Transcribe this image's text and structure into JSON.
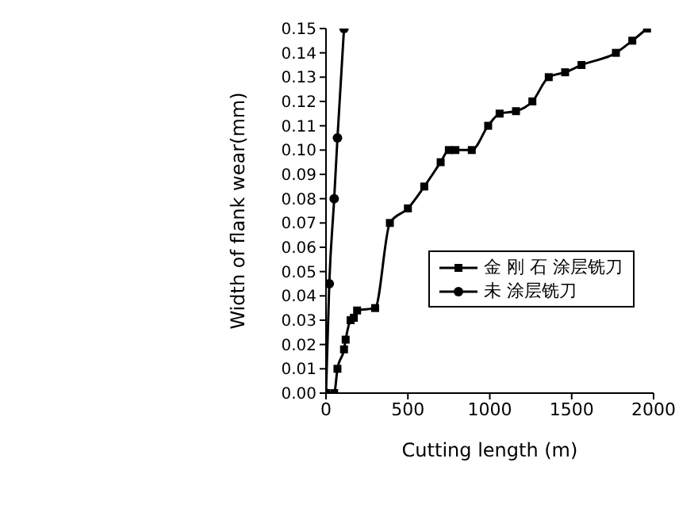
{
  "chart_data": {
    "type": "line",
    "xlabel": "Cutting length (m)",
    "ylabel": "Width of flank wear(mm)",
    "xlim": [
      0,
      2000
    ],
    "xticks": [
      0,
      500,
      1000,
      1500,
      2000
    ],
    "ylim": [
      0,
      0.15
    ],
    "yticks": [
      {
        "value": 0,
        "label": "0.00"
      },
      {
        "value": 0.01,
        "label": "0.01"
      },
      {
        "value": 0.02,
        "label": "0.02"
      },
      {
        "value": 0.03,
        "label": "0.03"
      },
      {
        "value": 0.04,
        "label": "0.04"
      },
      {
        "value": 0.05,
        "label": "0.05"
      },
      {
        "value": 0.06,
        "label": "0.06"
      },
      {
        "value": 0.07,
        "label": "0.07"
      },
      {
        "value": 0.08,
        "label": "0.08"
      },
      {
        "value": 0.09,
        "label": "0.09"
      },
      {
        "value": 0.1,
        "label": "0.10"
      },
      {
        "value": 0.11,
        "label": "0.11"
      },
      {
        "value": 0.12,
        "label": "0.12"
      },
      {
        "value": 0.13,
        "label": "0.13"
      },
      {
        "value": 0.14,
        "label": "0.14"
      },
      {
        "value": 0.15,
        "label": "0.15"
      }
    ],
    "legend": "right",
    "line_style": "solid",
    "series": [
      {
        "name": "金 刚 石 涂层铣刀",
        "color": "#000000",
        "marker": "square",
        "x": [
          0,
          50,
          70,
          110,
          120,
          150,
          170,
          190,
          300,
          390,
          500,
          600,
          700,
          750,
          790,
          890,
          990,
          1060,
          1160,
          1260,
          1360,
          1460,
          1560,
          1770,
          1870,
          1960
        ],
        "values": [
          0,
          0,
          0.01,
          0.018,
          0.022,
          0.03,
          0.031,
          0.034,
          0.035,
          0.07,
          0.076,
          0.085,
          0.095,
          0.1,
          0.1,
          0.1,
          0.11,
          0.115,
          0.116,
          0.12,
          0.13,
          0.132,
          0.135,
          0.14,
          0.145,
          0.15
        ]
      },
      {
        "name": "未 涂层铣刀",
        "color": "#000000",
        "marker": "circle",
        "x": [
          0,
          20,
          50,
          70,
          110
        ],
        "values": [
          0,
          0.045,
          0.08,
          0.105,
          0.15
        ]
      }
    ]
  }
}
